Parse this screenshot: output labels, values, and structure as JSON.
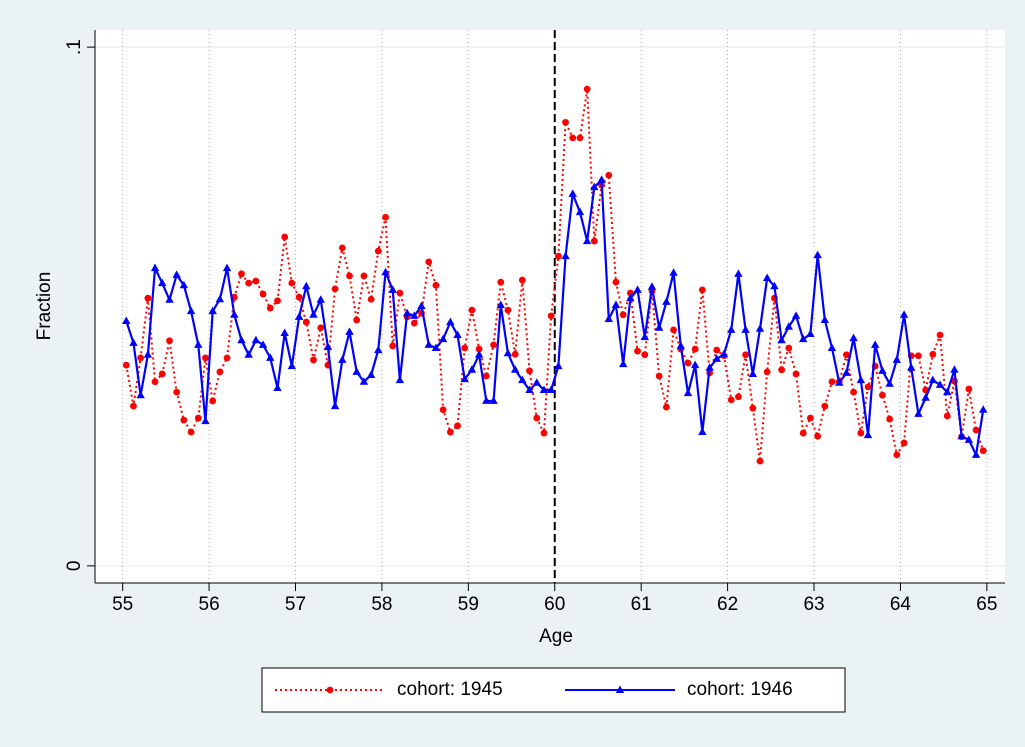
{
  "chart_data": {
    "type": "line",
    "xlabel": "Age",
    "ylabel": "Fraction",
    "x": [
      55.042,
      55.125,
      55.208,
      55.292,
      55.375,
      55.458,
      55.542,
      55.625,
      55.708,
      55.792,
      55.875,
      55.958,
      56.042,
      56.125,
      56.208,
      56.292,
      56.375,
      56.458,
      56.542,
      56.625,
      56.708,
      56.792,
      56.875,
      56.958,
      57.042,
      57.125,
      57.208,
      57.292,
      57.375,
      57.458,
      57.542,
      57.625,
      57.708,
      57.792,
      57.875,
      57.958,
      58.042,
      58.125,
      58.208,
      58.292,
      58.375,
      58.458,
      58.542,
      58.625,
      58.708,
      58.792,
      58.875,
      58.958,
      59.042,
      59.125,
      59.208,
      59.292,
      59.375,
      59.458,
      59.542,
      59.625,
      59.708,
      59.792,
      59.875,
      59.958,
      60.042,
      60.125,
      60.208,
      60.292,
      60.375,
      60.458,
      60.542,
      60.625,
      60.708,
      60.792,
      60.875,
      60.958,
      61.042,
      61.125,
      61.208,
      61.292,
      61.375,
      61.458,
      61.542,
      61.625,
      61.708,
      61.792,
      61.875,
      61.958,
      62.042,
      62.125,
      62.208,
      62.292,
      62.375,
      62.458,
      62.542,
      62.625,
      62.708,
      62.792,
      62.875,
      62.958,
      63.042,
      63.125,
      63.208,
      63.292,
      63.375,
      63.458,
      63.542,
      63.625,
      63.708,
      63.792,
      63.875,
      63.958,
      64.042,
      64.125,
      64.208,
      64.292,
      64.375,
      64.458,
      64.542,
      64.625,
      64.708,
      64.792,
      64.875,
      64.958
    ],
    "series": [
      {
        "name": "cohort: 1945",
        "color": "#ff0000",
        "marker": "circle",
        "dash": "dotted",
        "values": [
          0.0387,
          0.0308,
          0.0401,
          0.0516,
          0.0355,
          0.037,
          0.0434,
          0.0335,
          0.0281,
          0.0258,
          0.0285,
          0.0401,
          0.0318,
          0.0374,
          0.0401,
          0.0518,
          0.0563,
          0.0545,
          0.0549,
          0.0524,
          0.0497,
          0.0511,
          0.0634,
          0.0545,
          0.0518,
          0.047,
          0.0397,
          0.0459,
          0.0387,
          0.0534,
          0.0613,
          0.0559,
          0.0474,
          0.0559,
          0.0514,
          0.0607,
          0.0672,
          0.0424,
          0.0526,
          0.048,
          0.0468,
          0.0487,
          0.0586,
          0.0541,
          0.0301,
          0.0258,
          0.027,
          0.042,
          0.0493,
          0.0418,
          0.0366,
          0.0426,
          0.0547,
          0.0493,
          0.0408,
          0.0551,
          0.0376,
          0.0285,
          0.0256,
          0.0482,
          0.0597,
          0.0855,
          0.0825,
          0.0825,
          0.0919,
          0.0626,
          0.0734,
          0.0753,
          0.0547,
          0.0484,
          0.0526,
          0.0414,
          0.0407,
          0.053,
          0.0366,
          0.0306,
          0.0455,
          0.0418,
          0.0391,
          0.0418,
          0.0532,
          0.0372,
          0.0416,
          0.0405,
          0.032,
          0.0326,
          0.0407,
          0.0304,
          0.0202,
          0.0374,
          0.0516,
          0.0378,
          0.042,
          0.037,
          0.0256,
          0.0285,
          0.025,
          0.0308,
          0.0355,
          0.0355,
          0.0407,
          0.0335,
          0.0256,
          0.0345,
          0.0385,
          0.0329,
          0.0283,
          0.0214,
          0.0237,
          0.0405,
          0.0405,
          0.0339,
          0.0408,
          0.0445,
          0.0289,
          0.0356,
          0.0249,
          0.0341,
          0.0262,
          0.0222
        ]
      },
      {
        "name": "cohort: 1946",
        "color": "#0000ff",
        "marker": "triangle",
        "dash": "solid",
        "values": [
          0.0472,
          0.043,
          0.0329,
          0.0407,
          0.0574,
          0.0545,
          0.0513,
          0.0561,
          0.0541,
          0.0491,
          0.0426,
          0.0279,
          0.0491,
          0.0514,
          0.0574,
          0.0484,
          0.0435,
          0.0407,
          0.0435,
          0.0426,
          0.0401,
          0.0343,
          0.0449,
          0.0385,
          0.048,
          0.0539,
          0.0484,
          0.0513,
          0.0422,
          0.0308,
          0.0397,
          0.0451,
          0.0374,
          0.0355,
          0.0368,
          0.0416,
          0.0566,
          0.0532,
          0.0358,
          0.0487,
          0.0482,
          0.0501,
          0.0426,
          0.042,
          0.0437,
          0.047,
          0.0445,
          0.036,
          0.0378,
          0.0407,
          0.0318,
          0.0318,
          0.0503,
          0.041,
          0.0378,
          0.0358,
          0.0339,
          0.0353,
          0.0339,
          0.0339,
          0.0385,
          0.0597,
          0.0717,
          0.0682,
          0.0626,
          0.073,
          0.0744,
          0.0476,
          0.0503,
          0.0389,
          0.0516,
          0.0532,
          0.0441,
          0.0538,
          0.0459,
          0.0509,
          0.0565,
          0.0424,
          0.0333,
          0.0387,
          0.0258,
          0.0382,
          0.0399,
          0.0408,
          0.0455,
          0.0563,
          0.0455,
          0.037,
          0.0457,
          0.0555,
          0.0539,
          0.0435,
          0.0461,
          0.0482,
          0.0437,
          0.0447,
          0.0599,
          0.0474,
          0.042,
          0.0353,
          0.0372,
          0.0439,
          0.0358,
          0.0252,
          0.0426,
          0.0376,
          0.0351,
          0.0397,
          0.0484,
          0.0382,
          0.0293,
          0.0324,
          0.0358,
          0.0349,
          0.0335,
          0.0378,
          0.025,
          0.0243,
          0.0214,
          0.0301
        ]
      }
    ],
    "xlim": [
      54.68,
      65.21
    ],
    "ylim": [
      -0.0033,
      0.1033
    ],
    "xticks": [
      55,
      56,
      57,
      58,
      59,
      60,
      61,
      62,
      63,
      64,
      65
    ],
    "yticks": [
      0,
      {
        "value": 0.1,
        "label": ".1"
      }
    ],
    "vline": 60,
    "grid": true,
    "legend": "bottom"
  }
}
